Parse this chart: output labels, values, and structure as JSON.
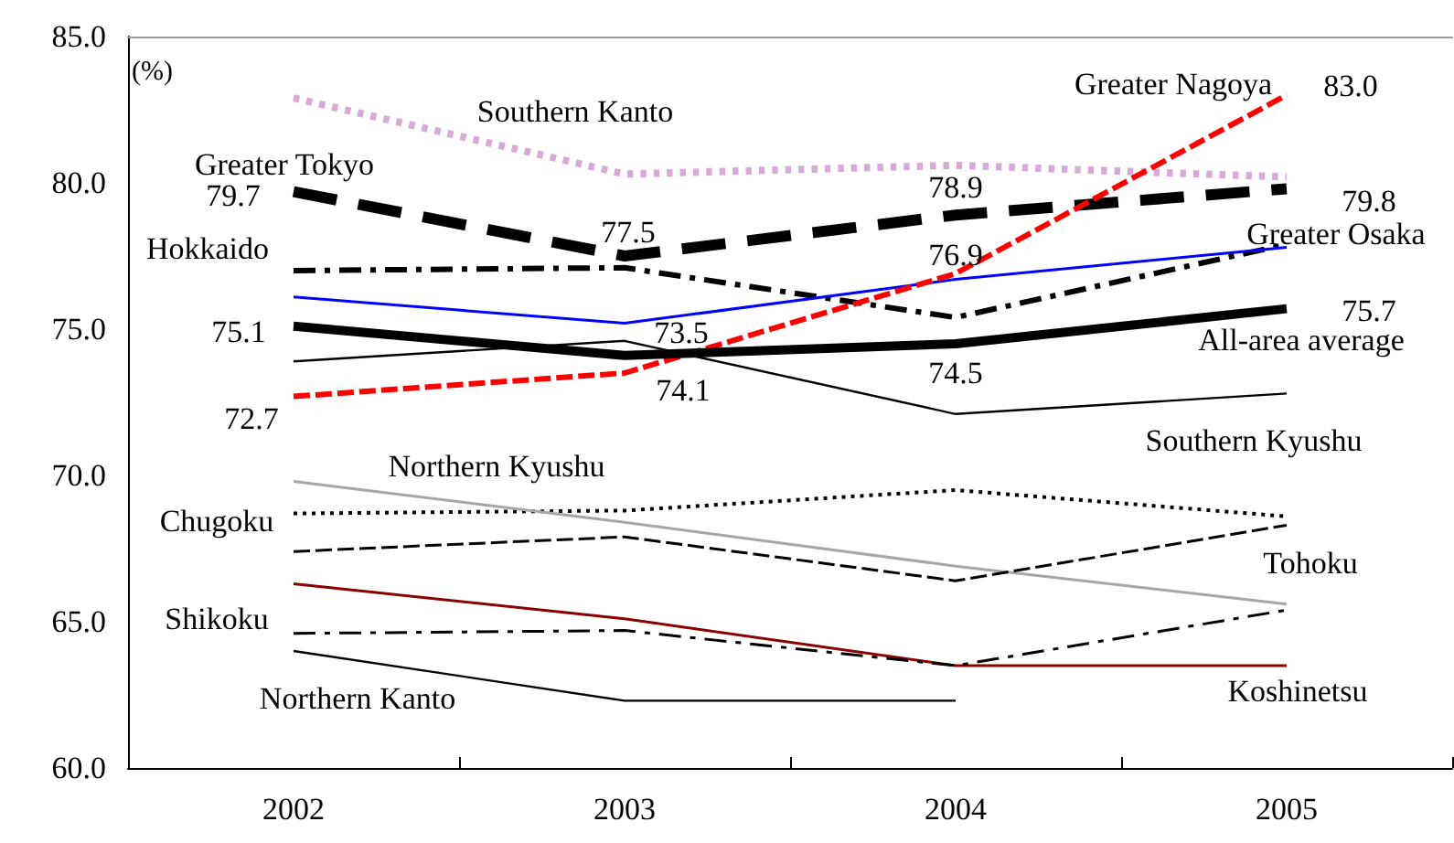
{
  "chart_data": {
    "type": "line",
    "ylabel": "(%)",
    "categories": [
      "2002",
      "2003",
      "2004",
      "2005"
    ],
    "ylim": [
      60,
      85
    ],
    "yticks": [
      {
        "value": 60,
        "label": "60.0"
      },
      {
        "value": 65,
        "label": "65.0"
      },
      {
        "value": 70,
        "label": "70.0"
      },
      {
        "value": 75,
        "label": "75.0"
      },
      {
        "value": 80,
        "label": "80.0"
      },
      {
        "value": 85,
        "label": "85.0"
      }
    ],
    "grid": false,
    "legend": false,
    "marker": "none",
    "series": [
      {
        "name": "Southern Kanto",
        "color": "#d8a8d8",
        "line_style": "dotted",
        "values": [
          82.9,
          80.3,
          80.6,
          80.2
        ]
      },
      {
        "name": "Greater Tokyo",
        "color": "#000000",
        "line_style": "dashed",
        "values": [
          79.7,
          77.5,
          78.9,
          79.8
        ],
        "value_labels": [
          "79.7",
          "77.5",
          "78.9",
          "79.8"
        ]
      },
      {
        "name": "Hokkaido",
        "color": "#000000",
        "line_style": "dashdot",
        "values": [
          77.0,
          77.1,
          75.4,
          77.9
        ]
      },
      {
        "name": "Greater Osaka",
        "color": "#0000ff",
        "line_style": "solid",
        "values": [
          76.1,
          75.2,
          76.7,
          77.8
        ]
      },
      {
        "name": "All-area average",
        "color": "#000000",
        "line_style": "solid",
        "values": [
          75.1,
          74.1,
          74.5,
          75.7
        ],
        "value_labels": [
          "75.1",
          "74.1",
          "74.5",
          "75.7"
        ]
      },
      {
        "name": "Greater Nagoya",
        "color": "#ff0000",
        "line_style": "dashed",
        "values": [
          72.7,
          73.5,
          76.9,
          83.0
        ],
        "value_labels": [
          "72.7",
          "73.5",
          "76.9",
          "83.0"
        ]
      },
      {
        "name": "Southern Kyushu",
        "color": "#000000",
        "line_style": "solid",
        "values": [
          73.9,
          74.6,
          72.1,
          72.8
        ]
      },
      {
        "name": "Chugoku",
        "color": "#000000",
        "line_style": "dotted",
        "values": [
          68.7,
          68.8,
          69.5,
          68.6
        ]
      },
      {
        "name": "Northern Kyushu",
        "color": "#a6a6a6",
        "line_style": "solid",
        "values": [
          69.8,
          68.4,
          66.9,
          65.6
        ]
      },
      {
        "name": "Tohoku",
        "color": "#000000",
        "line_style": "dashed",
        "values": [
          67.4,
          67.9,
          66.4,
          68.3
        ]
      },
      {
        "name": "Koshinetsu",
        "color": "#8b0000",
        "line_style": "solid",
        "values": [
          66.3,
          65.1,
          63.5,
          63.5
        ]
      },
      {
        "name": "Shikoku",
        "color": "#000000",
        "line_style": "dashdot",
        "values": [
          64.6,
          64.7,
          63.5,
          65.4
        ]
      },
      {
        "name": "Northern Kanto",
        "color": "#000000",
        "line_style": "solid",
        "values": [
          64.0,
          62.3,
          62.3,
          null
        ]
      }
    ]
  }
}
